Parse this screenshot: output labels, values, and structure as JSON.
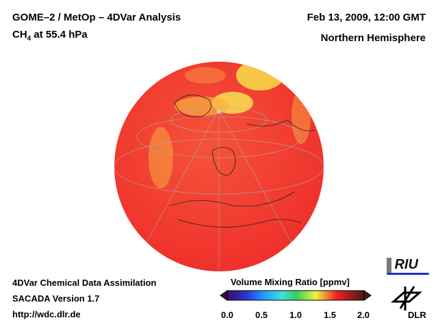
{
  "header": {
    "title": "GOME–2 / MetOp – 4DVar Analysis",
    "species": "CH",
    "species_sub": "4",
    "level": " at 55.4 hPa",
    "date": "Feb 13, 2009, 12:00 GMT",
    "region": "Northern Hemisphere"
  },
  "footer": {
    "line1": "4DVar Chemical Data Assimilation",
    "line2": "SACADA Version 1.7",
    "url": "http://wdc.dlr.de"
  },
  "colorbar": {
    "title": "Volume Mixing Ratio [ppmv]",
    "ticks": [
      "0.0",
      "0.5",
      "1.0",
      "1.5",
      "2.0"
    ],
    "range": [
      0,
      2
    ]
  },
  "logos": {
    "riu": "RIU",
    "dlr": "DLR"
  }
}
